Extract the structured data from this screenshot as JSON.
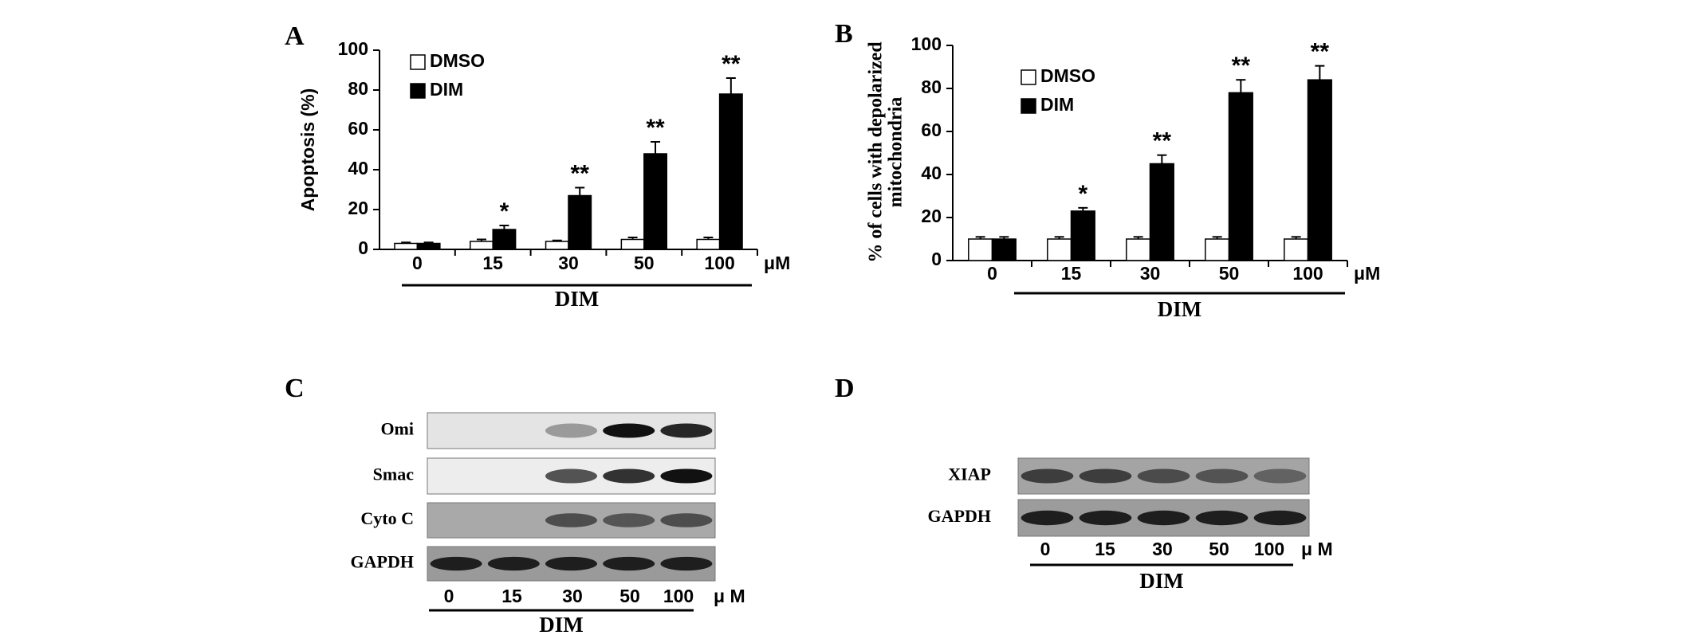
{
  "chart_data": [
    {
      "type": "bar",
      "panel": "A",
      "ylabel": [
        "Apoptosis (%)"
      ],
      "categories": [
        "0",
        "15",
        "30",
        "50",
        "100"
      ],
      "unit": "μM",
      "group_label": "DIM",
      "series": [
        {
          "name": "DMSO",
          "color": "#ffffff",
          "values": [
            3,
            4,
            4,
            5,
            5
          ],
          "errors": [
            0.5,
            1,
            0.5,
            1,
            1
          ]
        },
        {
          "name": "DIM",
          "color": "#000000",
          "values": [
            3,
            10,
            27,
            48,
            78
          ],
          "errors": [
            0.5,
            2,
            4,
            6,
            8
          ]
        }
      ],
      "significance": [
        null,
        "*",
        "**",
        "**",
        "**"
      ],
      "ylim": [
        0,
        100
      ],
      "yticks": [
        0,
        20,
        40,
        60,
        80,
        100
      ]
    },
    {
      "type": "bar",
      "panel": "B",
      "ylabel": [
        "% of cells with depolarized",
        "mitochondria"
      ],
      "categories": [
        "0",
        "15",
        "30",
        "50",
        "100"
      ],
      "unit": "μM",
      "group_label": "DIM",
      "series": [
        {
          "name": "DMSO",
          "color": "#ffffff",
          "values": [
            10,
            10,
            10,
            10,
            10
          ],
          "errors": [
            1,
            1,
            1,
            1,
            1
          ]
        },
        {
          "name": "DIM",
          "color": "#000000",
          "values": [
            10,
            23,
            45,
            78,
            84
          ],
          "errors": [
            1,
            1.5,
            4,
            6,
            6.5
          ]
        }
      ],
      "significance": [
        null,
        "*",
        "**",
        "**",
        "**"
      ],
      "ylim": [
        0,
        100
      ],
      "yticks": [
        0,
        20,
        40,
        60,
        80,
        100
      ]
    }
  ],
  "blots": [
    {
      "panel": "C",
      "lanes": [
        "0",
        "15",
        "30",
        "50",
        "100"
      ],
      "unit": "μ M",
      "group_label": "DIM",
      "rows": [
        {
          "label": "Omi",
          "background": "#e4e4e4",
          "intensity": [
            0,
            0,
            0.35,
            1,
            0.9
          ]
        },
        {
          "label": "Smac",
          "background": "#ededed",
          "intensity": [
            0,
            0,
            0.7,
            0.85,
            1
          ]
        },
        {
          "label": "Cyto C",
          "background": "#a9a9a9",
          "intensity": [
            0,
            0,
            0.6,
            0.55,
            0.6
          ]
        },
        {
          "label": "GAPDH",
          "background": "#9a9a9a",
          "intensity": [
            0.9,
            0.9,
            0.9,
            0.9,
            0.9
          ]
        }
      ]
    },
    {
      "panel": "D",
      "lanes": [
        "0",
        "15",
        "30",
        "50",
        "100"
      ],
      "unit": "μ M",
      "group_label": "DIM",
      "rows": [
        {
          "label": "XIAP",
          "background": "#a4a4a4",
          "intensity": [
            0.7,
            0.7,
            0.6,
            0.55,
            0.45
          ]
        },
        {
          "label": "GAPDH",
          "background": "#9c9c9c",
          "intensity": [
            0.9,
            0.9,
            0.9,
            0.9,
            0.9
          ]
        }
      ]
    }
  ]
}
